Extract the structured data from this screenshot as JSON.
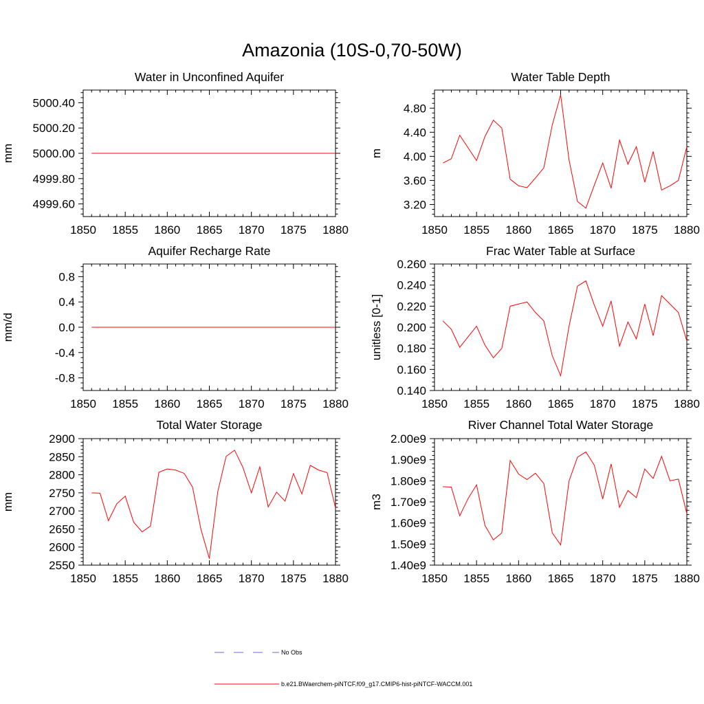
{
  "figure": {
    "title": "Amazonia (10S-0,70-50W)"
  },
  "legend": {
    "entries": [
      {
        "label": "No Obs",
        "color": "#6b6bd6",
        "style": "dashed"
      },
      {
        "label": "b.e21.BWaerchem-piNTCF.f09_g17.CMIP6-hist-piNTCF-WACCM.001",
        "color": "#ff0000",
        "style": "solid"
      }
    ]
  },
  "chart_data": [
    {
      "type": "line",
      "title": "Water in Unconfined Aquifer",
      "ylabel": "mm",
      "xlabel": "",
      "xlim": [
        1850,
        1880
      ],
      "ylim": [
        4999.5,
        5000.5
      ],
      "xticks": [
        1850,
        1855,
        1860,
        1865,
        1870,
        1875,
        1880
      ],
      "yticks": [
        4999.6,
        4999.8,
        5000.0,
        5000.2,
        5000.4
      ],
      "ytick_labels": [
        "4999.60",
        "4999.80",
        "5000.00",
        "5000.20",
        "5000.40"
      ],
      "x": [
        1851,
        1852,
        1853,
        1854,
        1855,
        1856,
        1857,
        1858,
        1859,
        1860,
        1861,
        1862,
        1863,
        1864,
        1865,
        1866,
        1867,
        1868,
        1869,
        1870,
        1871,
        1872,
        1873,
        1874,
        1875,
        1876,
        1877,
        1878,
        1879,
        1880
      ],
      "series": [
        {
          "values": [
            5000,
            5000,
            5000,
            5000,
            5000,
            5000,
            5000,
            5000,
            5000,
            5000,
            5000,
            5000,
            5000,
            5000,
            5000,
            5000,
            5000,
            5000,
            5000,
            5000,
            5000,
            5000,
            5000,
            5000,
            5000,
            5000,
            5000,
            5000,
            5000,
            5000
          ],
          "color": "#ff0000"
        }
      ]
    },
    {
      "type": "line",
      "title": "Water Table Depth",
      "ylabel": "m",
      "xlabel": "",
      "xlim": [
        1850,
        1880
      ],
      "ylim": [
        3.0,
        5.1
      ],
      "xticks": [
        1850,
        1855,
        1860,
        1865,
        1870,
        1875,
        1880
      ],
      "yticks": [
        3.2,
        3.6,
        4.0,
        4.4,
        4.8
      ],
      "ytick_labels": [
        "3.20",
        "3.60",
        "4.00",
        "4.40",
        "4.80"
      ],
      "x": [
        1851,
        1852,
        1853,
        1854,
        1855,
        1856,
        1857,
        1858,
        1859,
        1860,
        1861,
        1862,
        1863,
        1864,
        1865,
        1866,
        1867,
        1868,
        1869,
        1870,
        1871,
        1872,
        1873,
        1874,
        1875,
        1876,
        1877,
        1878,
        1879,
        1880
      ],
      "series": [
        {
          "values": [
            3.89,
            3.96,
            4.35,
            4.14,
            3.93,
            4.33,
            4.6,
            4.47,
            3.62,
            3.51,
            3.48,
            3.64,
            3.81,
            4.52,
            5.02,
            3.94,
            3.25,
            3.14,
            3.52,
            3.89,
            3.47,
            4.27,
            3.87,
            4.16,
            3.57,
            4.08,
            3.44,
            3.51,
            3.6,
            4.16
          ],
          "color": "#ff0000"
        }
      ]
    },
    {
      "type": "line",
      "title": "Aquifer Recharge Rate",
      "ylabel": "mm/d",
      "xlabel": "",
      "xlim": [
        1850,
        1880
      ],
      "ylim": [
        -1.0,
        1.0
      ],
      "xticks": [
        1850,
        1855,
        1860,
        1865,
        1870,
        1875,
        1880
      ],
      "yticks": [
        -0.8,
        -0.4,
        0.0,
        0.4,
        0.8
      ],
      "ytick_labels": [
        "-0.8",
        "-0.4",
        "0.0",
        "0.4",
        "0.8"
      ],
      "x": [
        1851,
        1852,
        1853,
        1854,
        1855,
        1856,
        1857,
        1858,
        1859,
        1860,
        1861,
        1862,
        1863,
        1864,
        1865,
        1866,
        1867,
        1868,
        1869,
        1870,
        1871,
        1872,
        1873,
        1874,
        1875,
        1876,
        1877,
        1878,
        1879,
        1880
      ],
      "series": [
        {
          "values": [
            0,
            0,
            0,
            0,
            0,
            0,
            0,
            0,
            0,
            0,
            0,
            0,
            0,
            0,
            0,
            0,
            0,
            0,
            0,
            0,
            0,
            0,
            0,
            0,
            0,
            0,
            0,
            0,
            0,
            0
          ],
          "color": "#ff0000"
        }
      ]
    },
    {
      "type": "line",
      "title": "Frac Water Table at Surface",
      "ylabel": "unitless [0-1]",
      "xlabel": "",
      "xlim": [
        1850,
        1880
      ],
      "ylim": [
        0.14,
        0.26
      ],
      "xticks": [
        1850,
        1855,
        1860,
        1865,
        1870,
        1875,
        1880
      ],
      "yticks": [
        0.14,
        0.16,
        0.18,
        0.2,
        0.22,
        0.24,
        0.26
      ],
      "ytick_labels": [
        "0.140",
        "0.160",
        "0.180",
        "0.200",
        "0.220",
        "0.240",
        "0.260"
      ],
      "x": [
        1851,
        1852,
        1853,
        1854,
        1855,
        1856,
        1857,
        1858,
        1859,
        1860,
        1861,
        1862,
        1863,
        1864,
        1865,
        1866,
        1867,
        1868,
        1869,
        1870,
        1871,
        1872,
        1873,
        1874,
        1875,
        1876,
        1877,
        1878,
        1879,
        1880
      ],
      "series": [
        {
          "values": [
            0.206,
            0.198,
            0.181,
            0.191,
            0.201,
            0.183,
            0.171,
            0.18,
            0.22,
            0.222,
            0.224,
            0.214,
            0.206,
            0.173,
            0.154,
            0.201,
            0.239,
            0.244,
            0.221,
            0.201,
            0.225,
            0.182,
            0.205,
            0.189,
            0.222,
            0.192,
            0.23,
            0.222,
            0.214,
            0.187
          ],
          "color": "#ff0000"
        }
      ]
    },
    {
      "type": "line",
      "title": "Total Water Storage",
      "ylabel": "mm",
      "xlabel": "",
      "xlim": [
        1850,
        1880
      ],
      "ylim": [
        2550,
        2900
      ],
      "xticks": [
        1850,
        1855,
        1860,
        1865,
        1870,
        1875,
        1880
      ],
      "yticks": [
        2550,
        2600,
        2650,
        2700,
        2750,
        2800,
        2850,
        2900
      ],
      "ytick_labels": [
        "2550",
        "2600",
        "2650",
        "2700",
        "2750",
        "2800",
        "2850",
        "2900"
      ],
      "x": [
        1851,
        1852,
        1853,
        1854,
        1855,
        1856,
        1857,
        1858,
        1859,
        1860,
        1861,
        1862,
        1863,
        1864,
        1865,
        1866,
        1867,
        1868,
        1869,
        1870,
        1871,
        1872,
        1873,
        1874,
        1875,
        1876,
        1877,
        1878,
        1879,
        1880
      ],
      "series": [
        {
          "values": [
            2750,
            2749,
            2673,
            2720,
            2741,
            2669,
            2642,
            2658,
            2807,
            2816,
            2813,
            2804,
            2766,
            2649,
            2568,
            2753,
            2851,
            2868,
            2820,
            2750,
            2822,
            2711,
            2752,
            2727,
            2803,
            2747,
            2826,
            2813,
            2806,
            2708
          ],
          "color": "#ff0000"
        }
      ]
    },
    {
      "type": "line",
      "title": "River Channel Total Water Storage",
      "ylabel": "m3",
      "xlabel": "",
      "xlim": [
        1850,
        1880
      ],
      "ylim": [
        1400000000.0,
        2000000000.0
      ],
      "xticks": [
        1850,
        1855,
        1860,
        1865,
        1870,
        1875,
        1880
      ],
      "yticks": [
        1400000000.0,
        1500000000.0,
        1600000000.0,
        1700000000.0,
        1800000000.0,
        1900000000.0,
        2000000000.0
      ],
      "ytick_labels": [
        "1.40e9",
        "1.50e9",
        "1.60e9",
        "1.70e9",
        "1.80e9",
        "1.90e9",
        "2.00e9"
      ],
      "x": [
        1851,
        1852,
        1853,
        1854,
        1855,
        1856,
        1857,
        1858,
        1859,
        1860,
        1861,
        1862,
        1863,
        1864,
        1865,
        1866,
        1867,
        1868,
        1869,
        1870,
        1871,
        1872,
        1873,
        1874,
        1875,
        1876,
        1877,
        1878,
        1879,
        1880
      ],
      "series": [
        {
          "values": [
            1772000000.0,
            1770000000.0,
            1634000000.0,
            1716000000.0,
            1781000000.0,
            1588000000.0,
            1520000000.0,
            1553000000.0,
            1896000000.0,
            1832000000.0,
            1806000000.0,
            1836000000.0,
            1787000000.0,
            1553000000.0,
            1496000000.0,
            1799000000.0,
            1912000000.0,
            1937000000.0,
            1874000000.0,
            1714000000.0,
            1880000000.0,
            1674000000.0,
            1754000000.0,
            1720000000.0,
            1856000000.0,
            1811000000.0,
            1916000000.0,
            1800000000.0,
            1808000000.0,
            1644000000.0
          ],
          "color": "#ff0000"
        }
      ]
    }
  ]
}
